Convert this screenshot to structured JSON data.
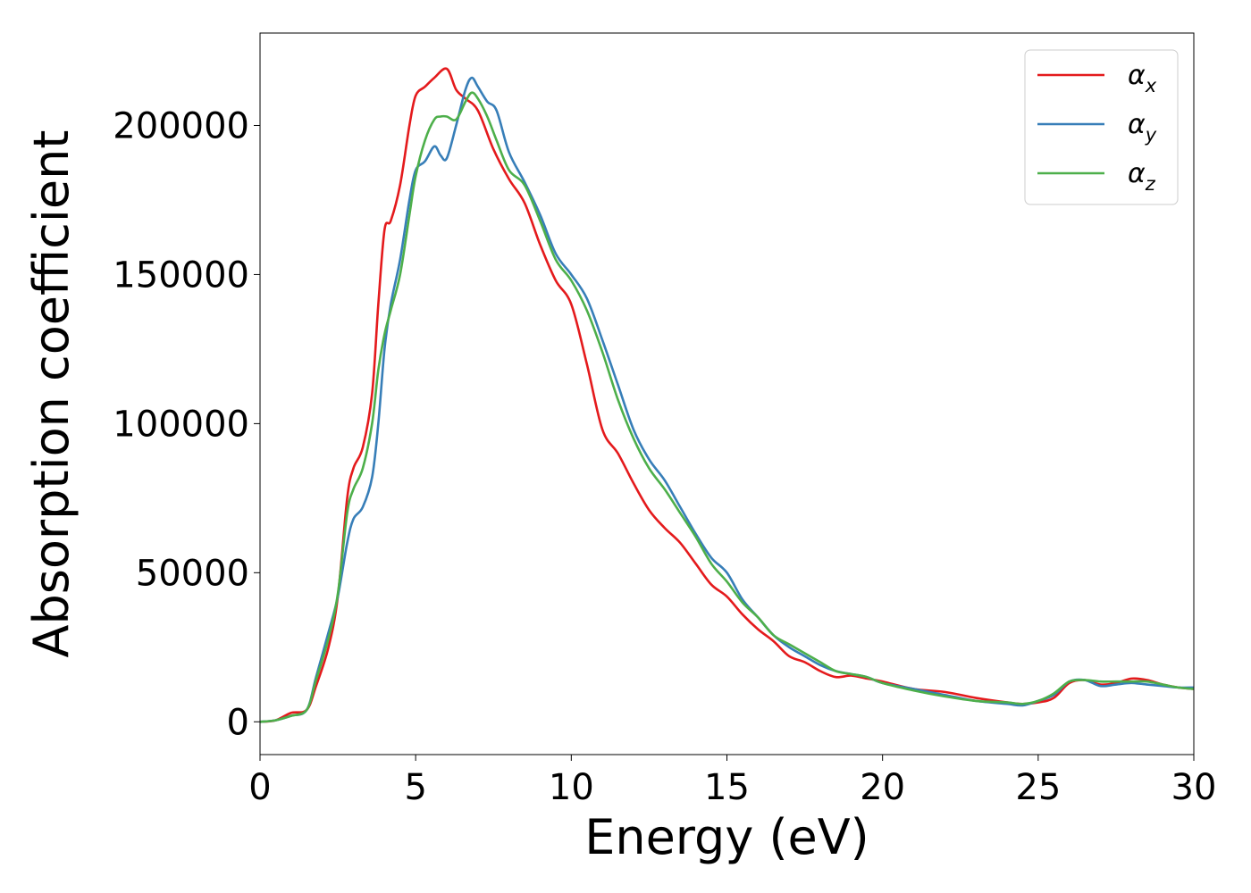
{
  "chart_data": {
    "type": "line",
    "title": "",
    "xlabel": "Energy (eV)",
    "ylabel": "Absorption coefficient",
    "xlim": [
      0,
      30
    ],
    "ylim": [
      -11000,
      231000
    ],
    "xticks": [
      0,
      5,
      10,
      15,
      20,
      25,
      30
    ],
    "yticks": [
      0,
      50000,
      100000,
      150000,
      200000
    ],
    "grid": false,
    "legend_position": "top-right",
    "series": [
      {
        "name": "α_x",
        "label_base": "α",
        "label_sub": "x",
        "color": "#e41a1c",
        "x": [
          0,
          0.5,
          1.0,
          1.5,
          1.8,
          2.2,
          2.5,
          2.8,
          3.0,
          3.3,
          3.6,
          3.8,
          4.0,
          4.2,
          4.5,
          4.8,
          5.0,
          5.3,
          5.6,
          6.0,
          6.3,
          6.6,
          7.0,
          7.5,
          8.0,
          8.5,
          9.0,
          9.5,
          10.0,
          10.5,
          11.0,
          11.5,
          12.0,
          12.5,
          13.0,
          13.5,
          14.0,
          14.5,
          15.0,
          15.5,
          16.0,
          16.5,
          17.0,
          17.5,
          18.0,
          18.5,
          19.0,
          19.5,
          20.0,
          21.0,
          22.0,
          23.0,
          24.0,
          24.5,
          25.0,
          25.5,
          26.0,
          26.5,
          27.0,
          27.5,
          28.0,
          28.5,
          29.0,
          29.5,
          30.0
        ],
        "y": [
          0,
          500,
          3000,
          4000,
          12000,
          25000,
          42000,
          75000,
          85000,
          92000,
          110000,
          140000,
          165000,
          168000,
          180000,
          200000,
          210000,
          213000,
          216000,
          219000,
          212000,
          209000,
          205000,
          192000,
          182000,
          174000,
          160000,
          148000,
          140000,
          120000,
          98000,
          90000,
          80000,
          71000,
          65000,
          60000,
          53000,
          46000,
          42000,
          36000,
          31000,
          27000,
          22000,
          20000,
          17000,
          15000,
          15500,
          14500,
          13500,
          11000,
          10000,
          8000,
          6500,
          6000,
          6500,
          8000,
          13000,
          14000,
          12500,
          13000,
          14500,
          14000,
          12500,
          11500,
          11000
        ]
      },
      {
        "name": "α_y",
        "label_base": "α",
        "label_sub": "y",
        "color": "#377eb8",
        "x": [
          0,
          0.5,
          1.0,
          1.5,
          1.8,
          2.2,
          2.5,
          2.8,
          3.0,
          3.3,
          3.6,
          3.8,
          4.0,
          4.2,
          4.5,
          4.8,
          5.0,
          5.3,
          5.6,
          5.8,
          6.0,
          6.3,
          6.6,
          6.8,
          7.0,
          7.3,
          7.6,
          8.0,
          8.5,
          9.0,
          9.5,
          10.0,
          10.5,
          11.0,
          11.5,
          12.0,
          12.5,
          13.0,
          13.5,
          14.0,
          14.5,
          15.0,
          15.5,
          16.0,
          16.5,
          17.0,
          17.5,
          18.0,
          18.5,
          19.0,
          19.5,
          20.0,
          21.0,
          22.0,
          23.0,
          24.0,
          24.5,
          25.0,
          25.5,
          26.0,
          26.5,
          27.0,
          27.5,
          28.0,
          28.5,
          29.0,
          29.5,
          30.0
        ],
        "y": [
          0,
          500,
          2000,
          4000,
          15000,
          30000,
          42000,
          60000,
          68000,
          72000,
          82000,
          100000,
          125000,
          140000,
          155000,
          175000,
          185000,
          188000,
          193000,
          190000,
          189000,
          200000,
          212000,
          216000,
          213000,
          208000,
          205000,
          191000,
          181000,
          170000,
          157000,
          150000,
          142000,
          128000,
          113000,
          98000,
          88000,
          81000,
          72000,
          63000,
          55000,
          50000,
          41000,
          35000,
          29000,
          25000,
          22000,
          19000,
          17000,
          16000,
          15000,
          13000,
          11000,
          9000,
          7000,
          6000,
          5500,
          7000,
          9000,
          13500,
          14000,
          12000,
          12500,
          13000,
          12500,
          12000,
          11500,
          11500
        ]
      },
      {
        "name": "α_z",
        "label_base": "α",
        "label_sub": "z",
        "color": "#4daf4a",
        "x": [
          0,
          0.5,
          1.0,
          1.5,
          1.8,
          2.2,
          2.5,
          2.8,
          3.0,
          3.3,
          3.6,
          3.8,
          4.0,
          4.2,
          4.5,
          4.8,
          5.0,
          5.3,
          5.6,
          5.8,
          6.0,
          6.3,
          6.6,
          6.8,
          7.0,
          7.3,
          7.6,
          8.0,
          8.5,
          9.0,
          9.5,
          10.0,
          10.5,
          11.0,
          11.5,
          12.0,
          12.5,
          13.0,
          13.5,
          14.0,
          14.5,
          15.0,
          15.5,
          16.0,
          16.5,
          17.0,
          17.5,
          18.0,
          18.5,
          19.0,
          19.5,
          20.0,
          21.0,
          22.0,
          23.0,
          24.0,
          24.5,
          25.0,
          25.5,
          26.0,
          26.5,
          27.0,
          27.5,
          28.0,
          28.5,
          29.0,
          29.5,
          30.0
        ],
        "y": [
          0,
          500,
          2000,
          4000,
          14000,
          28000,
          43000,
          70000,
          78000,
          85000,
          100000,
          118000,
          130000,
          138000,
          150000,
          170000,
          183000,
          195000,
          202000,
          203000,
          203000,
          202000,
          208000,
          211000,
          209000,
          203000,
          195000,
          185000,
          180000,
          168000,
          155000,
          148000,
          138000,
          124000,
          108000,
          95000,
          85000,
          78000,
          70000,
          62000,
          53000,
          47000,
          40000,
          35000,
          29000,
          26000,
          23000,
          20000,
          17000,
          16000,
          15000,
          13000,
          10500,
          8500,
          7000,
          6500,
          6000,
          7000,
          9500,
          13500,
          14000,
          13500,
          13500,
          13500,
          13500,
          12500,
          11500,
          11000
        ]
      }
    ]
  }
}
